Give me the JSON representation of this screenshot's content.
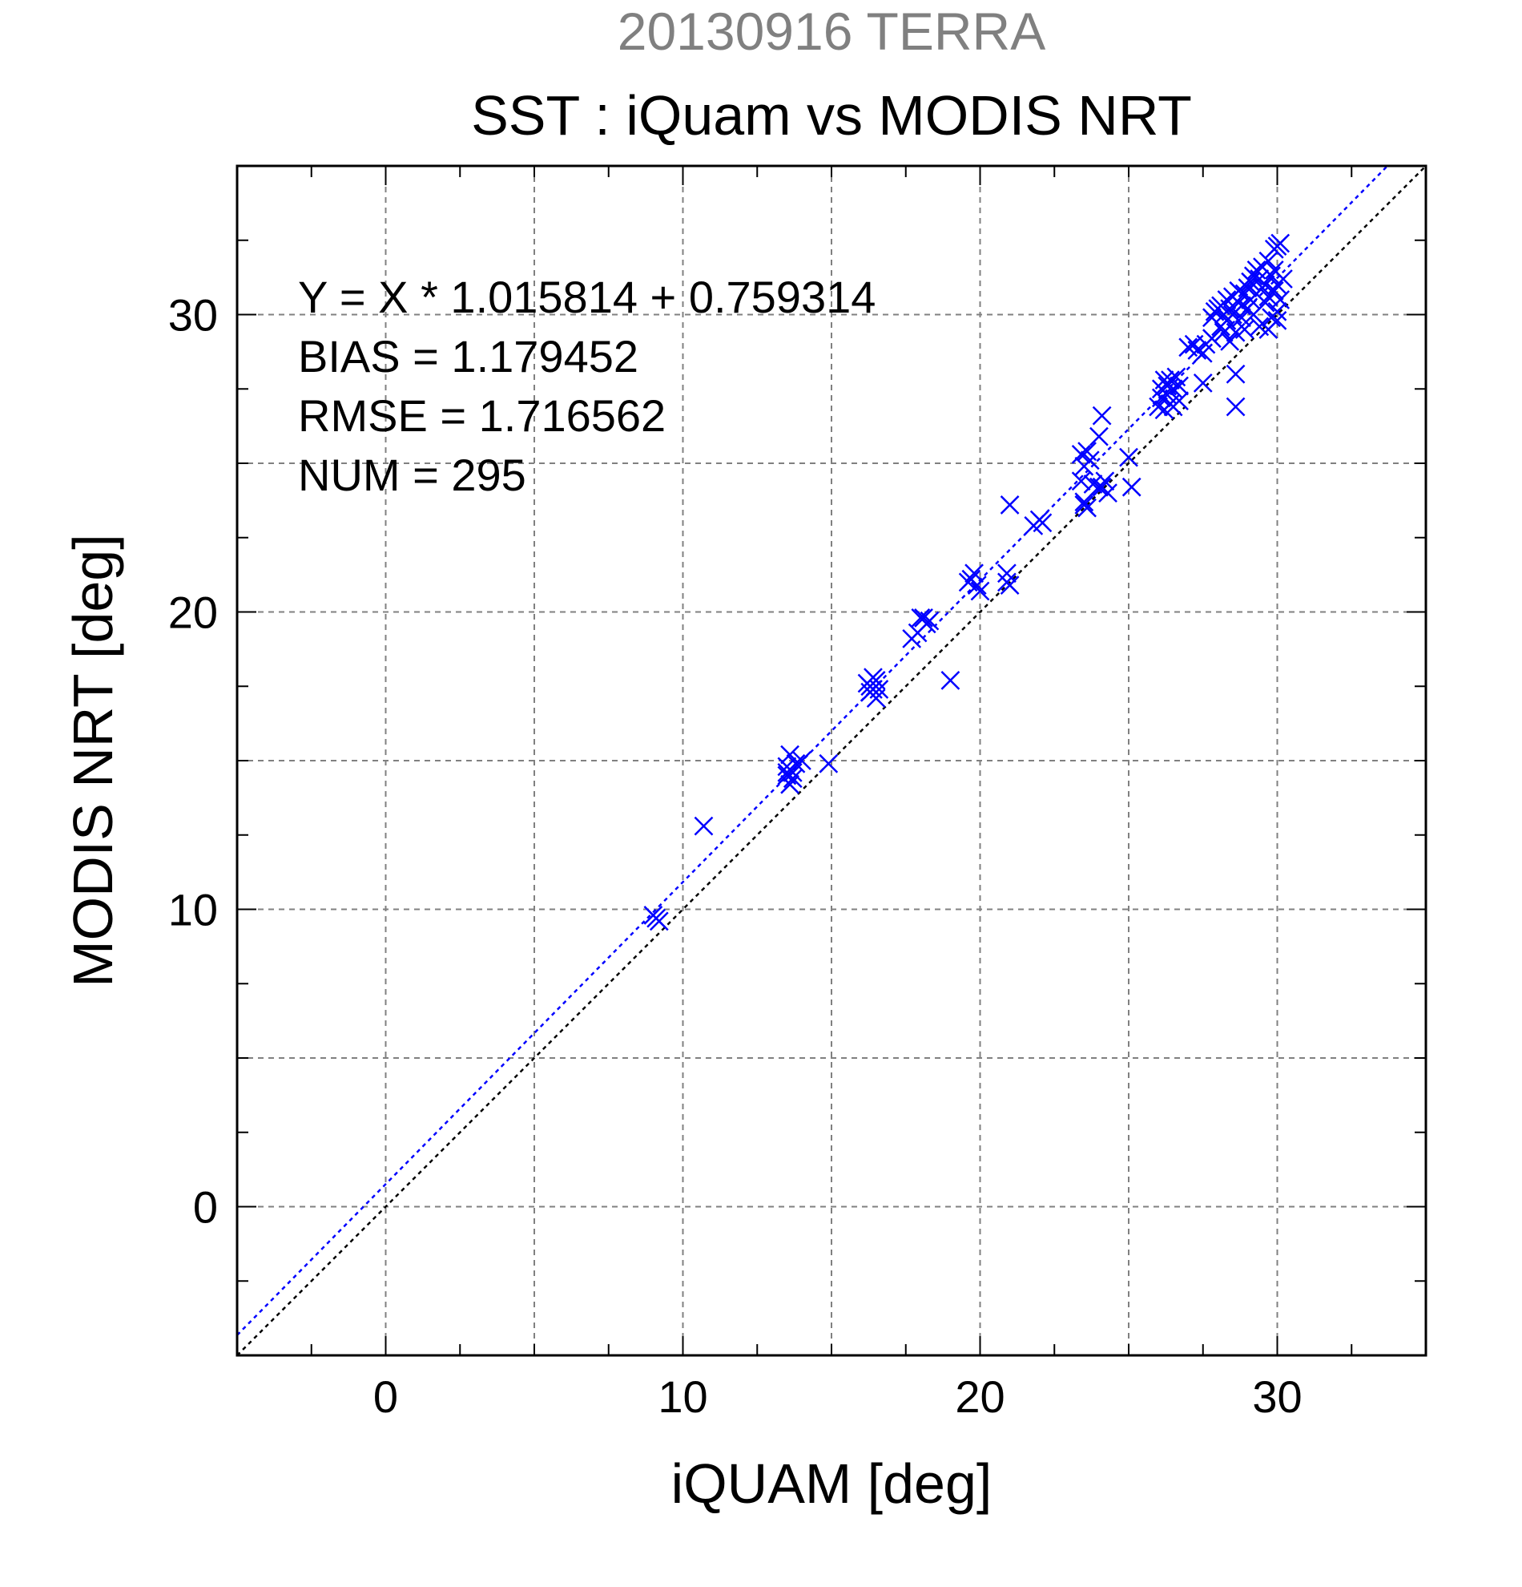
{
  "chart_data": {
    "type": "scatter",
    "title": "20130916 TERRA",
    "subtitle": "SST : iQuam vs MODIS NRT",
    "xlabel": "iQUAM [deg]",
    "ylabel": "MODIS NRT [deg]",
    "xlim": [
      -5,
      35
    ],
    "ylim": [
      -5,
      35
    ],
    "xticks": [
      0,
      10,
      20,
      30
    ],
    "yticks": [
      0,
      10,
      20,
      30
    ],
    "grid": true,
    "stats": [
      "Y = X * 1.015814 + 0.759314",
      "BIAS = 1.179452",
      "RMSE = 1.716562",
      "NUM = 295"
    ],
    "fit": {
      "slope": 1.015814,
      "intercept": 0.759314
    },
    "colors": {
      "title": "#808080",
      "points": "#0000ff",
      "fit_line": "#0000ff",
      "identity_line": "#000000",
      "grid": "#808080"
    },
    "points": [
      [
        9.1,
        9.7
      ],
      [
        9.0,
        9.8
      ],
      [
        9.2,
        9.6
      ],
      [
        10.7,
        12.8
      ],
      [
        13.5,
        14.5
      ],
      [
        13.5,
        14.8
      ],
      [
        13.6,
        15.2
      ],
      [
        13.6,
        14.2
      ],
      [
        13.7,
        14.6
      ],
      [
        13.8,
        14.9
      ],
      [
        13.7,
        14.4
      ],
      [
        13.5,
        14.6
      ],
      [
        14.0,
        15.0
      ],
      [
        14.9,
        14.9
      ],
      [
        16.2,
        17.6
      ],
      [
        16.3,
        17.3
      ],
      [
        16.3,
        17.5
      ],
      [
        16.4,
        17.4
      ],
      [
        16.5,
        17.7
      ],
      [
        16.5,
        17.1
      ],
      [
        16.6,
        17.4
      ],
      [
        16.4,
        17.8
      ],
      [
        17.7,
        19.1
      ],
      [
        17.9,
        19.3
      ],
      [
        18.1,
        19.8
      ],
      [
        18.2,
        19.6
      ],
      [
        18.3,
        19.7
      ],
      [
        18.0,
        19.8
      ],
      [
        19.0,
        17.7
      ],
      [
        19.6,
        21.0
      ],
      [
        19.8,
        21.3
      ],
      [
        19.9,
        20.9
      ],
      [
        20.0,
        20.7
      ],
      [
        19.7,
        21.1
      ],
      [
        20.9,
        21.0
      ],
      [
        20.9,
        21.3
      ],
      [
        21.0,
        20.9
      ],
      [
        21.0,
        23.6
      ],
      [
        21.8,
        22.9
      ],
      [
        22.0,
        23.1
      ],
      [
        22.1,
        23.0
      ],
      [
        23.4,
        25.3
      ],
      [
        23.5,
        23.6
      ],
      [
        23.5,
        24.9
      ],
      [
        23.6,
        25.4
      ],
      [
        23.7,
        25.1
      ],
      [
        23.6,
        23.5
      ],
      [
        23.5,
        23.7
      ],
      [
        23.4,
        24.4
      ],
      [
        23.8,
        24.3
      ],
      [
        24.0,
        25.9
      ],
      [
        24.1,
        26.6
      ],
      [
        24.0,
        24.2
      ],
      [
        24.1,
        24.2
      ],
      [
        24.3,
        24.0
      ],
      [
        24.2,
        24.4
      ],
      [
        25.0,
        25.2
      ],
      [
        25.1,
        24.2
      ],
      [
        26.0,
        26.9
      ],
      [
        26.1,
        27.2
      ],
      [
        26.1,
        27.5
      ],
      [
        26.2,
        26.8
      ],
      [
        26.3,
        27.6
      ],
      [
        26.3,
        27.3
      ],
      [
        26.4,
        27.0
      ],
      [
        26.4,
        27.8
      ],
      [
        26.5,
        27.5
      ],
      [
        26.6,
        27.9
      ],
      [
        26.7,
        27.1
      ],
      [
        26.7,
        27.6
      ],
      [
        26.2,
        27.8
      ],
      [
        26.5,
        26.9
      ],
      [
        27.0,
        28.9
      ],
      [
        27.2,
        29.0
      ],
      [
        27.3,
        28.8
      ],
      [
        27.5,
        28.7
      ],
      [
        27.6,
        29.0
      ],
      [
        27.5,
        27.7
      ],
      [
        27.8,
        29.2
      ],
      [
        27.8,
        29.9
      ],
      [
        27.9,
        30.1
      ],
      [
        28.0,
        30.2
      ],
      [
        28.1,
        29.6
      ],
      [
        28.1,
        30.3
      ],
      [
        28.2,
        30.0
      ],
      [
        28.2,
        29.4
      ],
      [
        28.3,
        30.5
      ],
      [
        28.3,
        29.8
      ],
      [
        28.4,
        30.2
      ],
      [
        28.4,
        29.1
      ],
      [
        28.5,
        30.6
      ],
      [
        28.5,
        30.0
      ],
      [
        28.6,
        29.4
      ],
      [
        28.6,
        28.0
      ],
      [
        28.6,
        26.9
      ],
      [
        28.7,
        30.4
      ],
      [
        28.7,
        30.8
      ],
      [
        28.8,
        29.9
      ],
      [
        28.8,
        30.3
      ],
      [
        28.9,
        30.7
      ],
      [
        28.9,
        29.5
      ],
      [
        29.0,
        30.9
      ],
      [
        29.0,
        30.2
      ],
      [
        29.1,
        31.1
      ],
      [
        29.1,
        30.5
      ],
      [
        29.2,
        31.3
      ],
      [
        29.2,
        30.0
      ],
      [
        29.3,
        31.5
      ],
      [
        29.3,
        30.7
      ],
      [
        29.4,
        31.2
      ],
      [
        29.4,
        29.6
      ],
      [
        29.5,
        30.9
      ],
      [
        29.5,
        31.6
      ],
      [
        29.6,
        30.4
      ],
      [
        29.6,
        31.0
      ],
      [
        29.7,
        31.8
      ],
      [
        29.7,
        30.6
      ],
      [
        29.8,
        31.3
      ],
      [
        29.8,
        29.9
      ],
      [
        29.9,
        30.8
      ],
      [
        29.9,
        31.5
      ],
      [
        30.0,
        32.3
      ],
      [
        30.0,
        29.8
      ],
      [
        30.0,
        31.0
      ],
      [
        30.1,
        32.4
      ],
      [
        30.1,
        30.5
      ],
      [
        30.2,
        31.2
      ],
      [
        29.9,
        32.2
      ],
      [
        30.0,
        30.1
      ],
      [
        29.7,
        29.5
      ]
    ]
  }
}
